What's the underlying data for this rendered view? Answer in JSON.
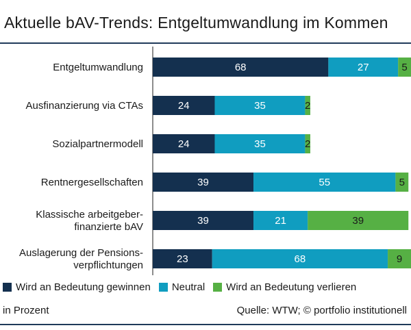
{
  "title": "Aktuelle bAV-Trends: Entgeltumwandlung im Kommen",
  "unit_note": "in Prozent",
  "source": "Quelle: WTW; © portfolio institutionell",
  "colors": {
    "dark": "#14304f",
    "teal": "#109dc0",
    "green": "#56b044",
    "rule": "#1f3a5a"
  },
  "chart_data": {
    "type": "bar",
    "orientation": "horizontal",
    "stacked": true,
    "xlim": [
      0,
      100
    ],
    "categories": [
      [
        "Entgeltumwandlung"
      ],
      [
        "Ausfinanzierung via CTAs"
      ],
      [
        "Sozialpartnermodell"
      ],
      [
        "Rentnergesellschaften"
      ],
      [
        "Klassische arbeitgeber-",
        "finanzierte bAV"
      ],
      [
        "Auslagerung der Pensions-",
        "verpflichtungen"
      ]
    ],
    "series": [
      {
        "name": "Wird an Bedeutung gewinnen",
        "color": "#14304f",
        "label_color": "#ffffff",
        "values": [
          68,
          24,
          24,
          39,
          39,
          23
        ]
      },
      {
        "name": "Neutral",
        "color": "#109dc0",
        "label_color": "#ffffff",
        "values": [
          27,
          35,
          35,
          55,
          21,
          68
        ]
      },
      {
        "name": "Wird an Bedeutung verlieren",
        "color": "#56b044",
        "label_color": "#1a1a1a",
        "values": [
          5,
          2,
          2,
          5,
          39,
          9
        ]
      }
    ],
    "legend_position": "bottom-left",
    "grid": false
  }
}
